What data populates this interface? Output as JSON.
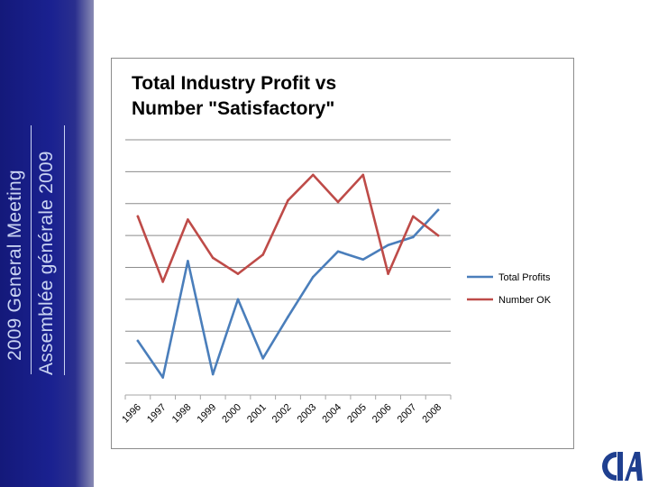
{
  "sidebar": {
    "line1": "2009 General Meeting",
    "line2": "Assemblée générale 2009",
    "color": "#1a2190"
  },
  "logo": {
    "icon": "cia-logo-icon"
  },
  "chart_data": {
    "type": "line",
    "title": "Total Industry Profit vs Number \"Satisfactory\"",
    "title_lines": [
      "Total Industry Profit vs",
      "Number \"Satisfactory\""
    ],
    "categories": [
      "1996",
      "1997",
      "1998",
      "1999",
      "2000",
      "2001",
      "2002",
      "2003",
      "2004",
      "2005",
      "2006",
      "2007",
      "2008"
    ],
    "ylim": [
      0,
      8
    ],
    "grid": true,
    "legend_position": "right",
    "series": [
      {
        "name": "Total Profits",
        "color": "#4a7ebb",
        "values": [
          1.7,
          0.55,
          4.2,
          0.65,
          3.0,
          1.15,
          2.45,
          3.7,
          4.5,
          4.25,
          4.7,
          4.95,
          5.8
        ]
      },
      {
        "name": "Number OK",
        "color": "#be4b48",
        "values": [
          5.6,
          3.55,
          5.5,
          4.3,
          3.8,
          4.4,
          6.1,
          6.9,
          6.05,
          6.9,
          3.8,
          5.6,
          5.0
        ]
      }
    ]
  }
}
